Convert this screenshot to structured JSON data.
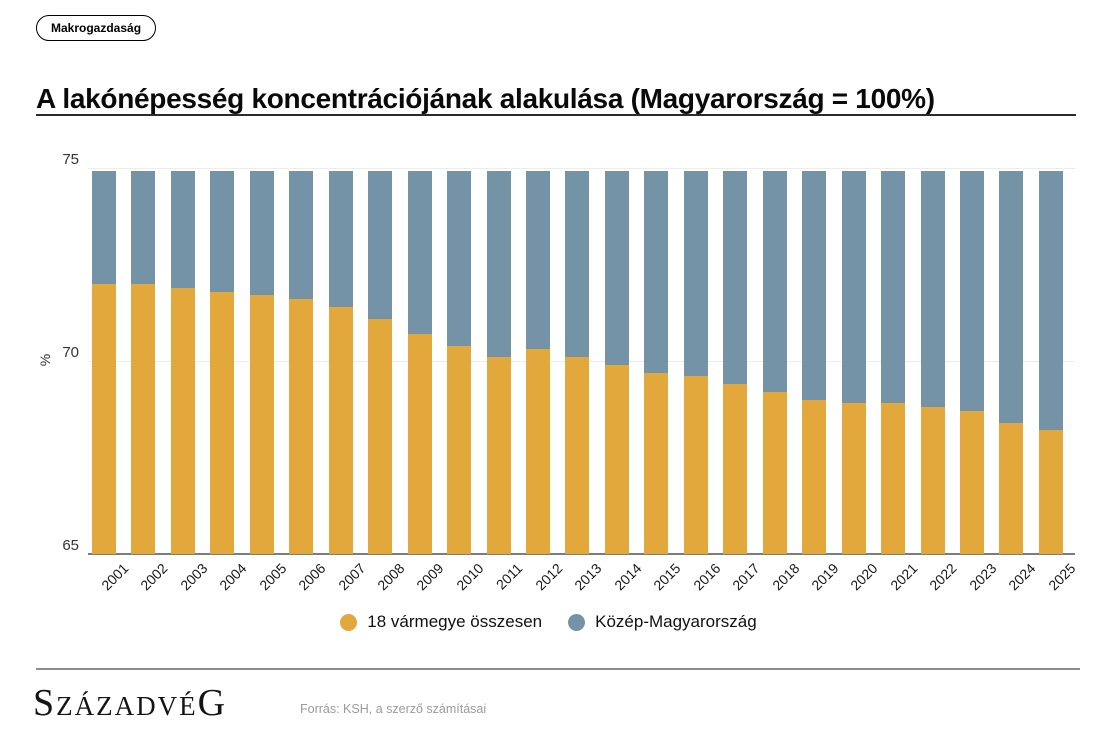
{
  "badge": {
    "label": "Makrogazdaság"
  },
  "title": "A lakónépesség koncentrációjának alakulása (Magyarország = 100%)",
  "chart_data": {
    "type": "bar",
    "stacked": true,
    "title": "A lakónépesség koncentrációjának alakulása (Magyarország = 100%)",
    "xlabel": "",
    "ylabel": "%",
    "ylim": [
      65,
      75
    ],
    "yticks": [
      75,
      70,
      65
    ],
    "grid": "horizontal",
    "legend_position": "bottom",
    "note": "stacked to 100%, y-axis clipped at 75",
    "categories": [
      2001,
      2002,
      2003,
      2004,
      2005,
      2006,
      2007,
      2008,
      2009,
      2010,
      2011,
      2012,
      2013,
      2014,
      2015,
      2016,
      2017,
      2018,
      2019,
      2020,
      2021,
      2022,
      2023,
      2024,
      2025
    ],
    "series": [
      {
        "name": "18 vármegye összesen",
        "color": "#E2A83C",
        "values": [
          72.0,
          72.0,
          71.9,
          71.8,
          71.7,
          71.6,
          71.4,
          71.1,
          70.7,
          70.4,
          70.1,
          70.3,
          70.1,
          69.9,
          69.7,
          69.6,
          69.4,
          69.2,
          69.0,
          68.9,
          68.9,
          68.8,
          68.7,
          68.4,
          68.2
        ]
      },
      {
        "name": "Közép-Magyarország",
        "color": "#7593A6",
        "values": [
          28.0,
          28.0,
          28.1,
          28.2,
          28.3,
          28.4,
          28.6,
          28.9,
          29.3,
          29.6,
          29.9,
          29.7,
          29.9,
          30.1,
          30.3,
          30.4,
          30.6,
          30.8,
          31.0,
          31.1,
          31.1,
          31.2,
          31.3,
          31.6,
          31.8
        ]
      }
    ]
  },
  "axis": {
    "ytick_labels": [
      "75",
      "70",
      "65"
    ],
    "ylabel": "%"
  },
  "footer": {
    "logo": "SZÁZADVÉG",
    "logo_parts": [
      "S",
      "ZÁZADVÉ",
      "G"
    ],
    "source": "Forrás: KSH, a szerző számításai"
  }
}
